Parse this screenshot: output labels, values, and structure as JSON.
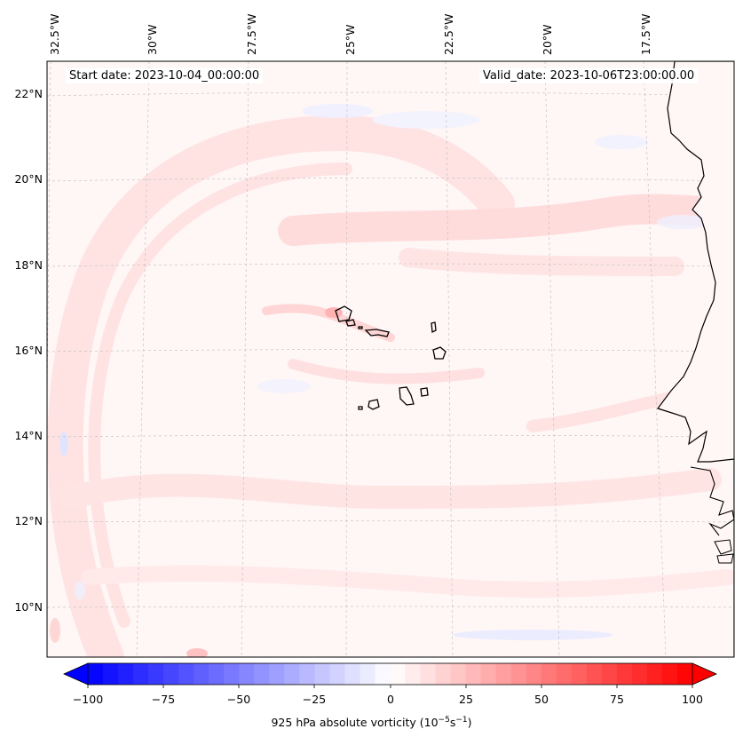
{
  "map": {
    "start_date": "Start date: 2023-10-04_00:00:00",
    "valid_date": "Valid_date: 2023-10-06T23:00:00.00",
    "lon_labels": [
      "32.5°W",
      "30°W",
      "27.5°W",
      "25°W",
      "22.5°W",
      "20°W",
      "17.5°W"
    ],
    "lat_labels": [
      "22°N",
      "20°N",
      "18°N",
      "16°N",
      "14°N",
      "12°N",
      "10°N"
    ],
    "extent": {
      "lon_min": -32.5,
      "lon_max": -15.5,
      "lat_min": 9,
      "lat_max": 22.8
    },
    "field": "925 hPa absolute vorticity",
    "islands": "Cabo Verde"
  },
  "colorbar": {
    "label_prefix": "925 hPa absolute vorticity (10",
    "label_exp1": "−5",
    "label_mid": "s",
    "label_exp2": "−1",
    "label_suffix": ")",
    "ticks": [
      "−100",
      "−75",
      "−50",
      "−25",
      "0",
      "25",
      "50",
      "75",
      "100"
    ],
    "min": -100,
    "max": 100,
    "colors": {
      "neg": "#0000ff",
      "zero": "#ffffff",
      "pos": "#ff0000"
    }
  }
}
